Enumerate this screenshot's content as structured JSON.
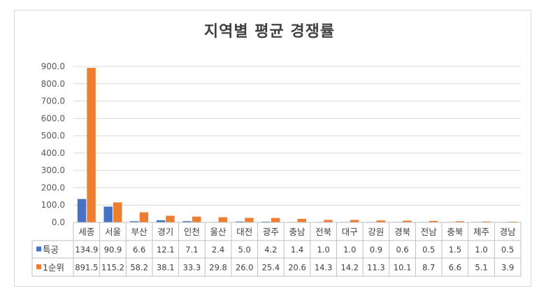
{
  "chart_data": {
    "type": "bar",
    "title": "지역별 평균 경쟁률",
    "categories": [
      "세종",
      "서울",
      "부산",
      "경기",
      "인천",
      "울산",
      "대전",
      "광주",
      "충남",
      "전북",
      "대구",
      "강원",
      "경북",
      "전남",
      "충북",
      "제주",
      "경남"
    ],
    "series": [
      {
        "name": "특공",
        "color": "#4472c4",
        "values": [
          134.9,
          90.9,
          6.6,
          12.1,
          7.1,
          2.4,
          5.0,
          4.2,
          1.4,
          1.0,
          1.0,
          0.9,
          0.6,
          0.5,
          1.5,
          1.0,
          0.5
        ],
        "labels": [
          "134.9",
          "90.9",
          "6.6",
          "12.1",
          "7.1",
          "2.4",
          "5.0",
          "4.2",
          "1.4",
          "1.0",
          "1.0",
          "0.9",
          "0.6",
          "0.5",
          "1.5",
          "1.0",
          "0.5"
        ]
      },
      {
        "name": "1순위",
        "color": "#ed7d31",
        "values": [
          891.5,
          115.2,
          58.2,
          38.1,
          33.3,
          29.8,
          26.0,
          25.4,
          20.6,
          14.3,
          14.2,
          11.3,
          10.1,
          8.7,
          6.6,
          5.1,
          3.9
        ],
        "labels": [
          "891.5",
          "115.2",
          "58.2",
          "38.1",
          "33.3",
          "29.8",
          "26.0",
          "25.4",
          "20.6",
          "14.3",
          "14.2",
          "11.3",
          "10.1",
          "8.7",
          "6.6",
          "5.1",
          "3.9"
        ]
      }
    ],
    "ylim": [
      0,
      900
    ],
    "yticks": [
      "0.0",
      "100.0",
      "200.0",
      "300.0",
      "400.0",
      "500.0",
      "600.0",
      "700.0",
      "800.0",
      "900.0"
    ],
    "ytick_values": [
      0,
      100,
      200,
      300,
      400,
      500,
      600,
      700,
      800,
      900
    ],
    "grid": true,
    "legend": "data-table"
  }
}
